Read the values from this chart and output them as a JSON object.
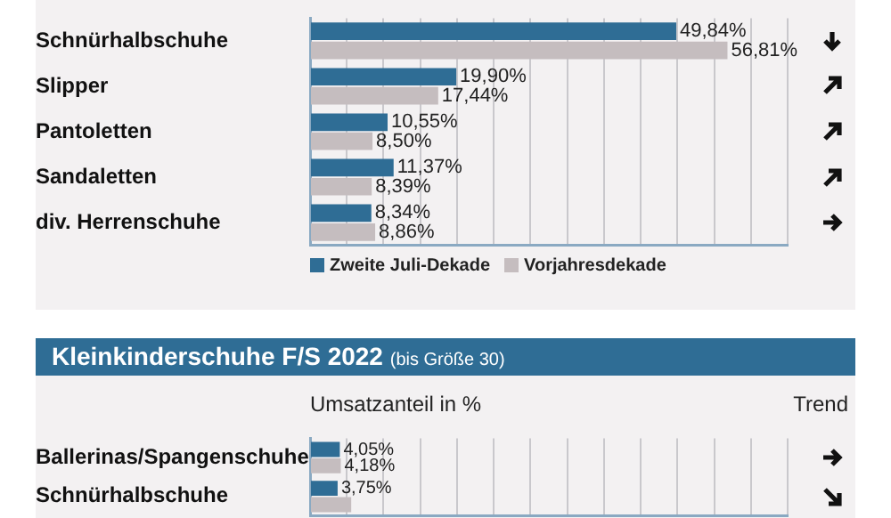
{
  "chart_data": [
    {
      "type": "bar",
      "orientation": "horizontal",
      "categories": [
        "Schnürhalbschuhe",
        "Slipper",
        "Pantoletten",
        "Sandaletten",
        "div. Herrenschuhe"
      ],
      "series": [
        {
          "name": "Zweite Juli-Dekade",
          "color": "#2f6d95",
          "values": [
            49.84,
            19.9,
            10.55,
            11.37,
            8.34
          ],
          "value_labels": [
            "49,84%",
            "19,90%",
            "10,55%",
            "11,37%",
            "8,34%"
          ]
        },
        {
          "name": "Vorjahresdekade",
          "color": "#c5bdbf",
          "values": [
            56.81,
            17.44,
            8.5,
            8.39,
            8.86
          ],
          "value_labels": [
            "56,81%",
            "17,44%",
            "8,50%",
            "8,39%",
            "8,86%"
          ]
        }
      ],
      "xlim": [
        0,
        65
      ],
      "xticks": [
        {
          "value": 0,
          "label": null
        },
        {
          "value": 5,
          "label": null
        },
        {
          "value": 10,
          "label": null
        },
        {
          "value": 15,
          "label": null
        },
        {
          "value": 20,
          "label": null
        },
        {
          "value": 25,
          "label": null
        },
        {
          "value": 30,
          "label": null
        },
        {
          "value": 35,
          "label": null
        },
        {
          "value": 40,
          "label": null
        },
        {
          "value": 45,
          "label": null
        },
        {
          "value": 50,
          "label": null
        },
        {
          "value": 55,
          "label": null
        },
        {
          "value": 60,
          "label": null
        },
        {
          "value": 65,
          "label": null
        }
      ],
      "grid": "x",
      "legend": "bottom",
      "tick_labels": "y"
    },
    {
      "type": "bar",
      "orientation": "horizontal",
      "title": "Kleinkinderschuhe F/S 2022",
      "subtitle": "(bis Größe 30)",
      "xlabel": "Umsatzanteil in %",
      "annotations": [
        "Trend"
      ],
      "categories": [
        "Ballerinas/Spangenschuhe",
        "Schnürhalbschuhe"
      ],
      "series": [
        {
          "color": "#2f6d95",
          "values": [
            4.05,
            3.75
          ],
          "value_labels": [
            "4,05%",
            "3,75%"
          ]
        },
        {
          "color": "#c5bdbf",
          "values": [
            4.18,
            5.6
          ],
          "value_labels": [
            "4,18%",
            null
          ]
        }
      ],
      "xlim": [
        0,
        65
      ],
      "xticks": [
        {
          "value": 0,
          "label": null
        },
        {
          "value": 5,
          "label": null
        },
        {
          "value": 10,
          "label": null
        },
        {
          "value": 15,
          "label": null
        },
        {
          "value": 20,
          "label": null
        },
        {
          "value": 25,
          "label": null
        },
        {
          "value": 30,
          "label": null
        },
        {
          "value": 35,
          "label": null
        },
        {
          "value": 40,
          "label": null
        },
        {
          "value": 45,
          "label": null
        },
        {
          "value": 50,
          "label": null
        },
        {
          "value": 55,
          "label": null
        },
        {
          "value": 60,
          "label": null
        },
        {
          "value": 65,
          "label": null
        }
      ],
      "grid": "x",
      "legend": false,
      "tick_labels": "y"
    }
  ]
}
